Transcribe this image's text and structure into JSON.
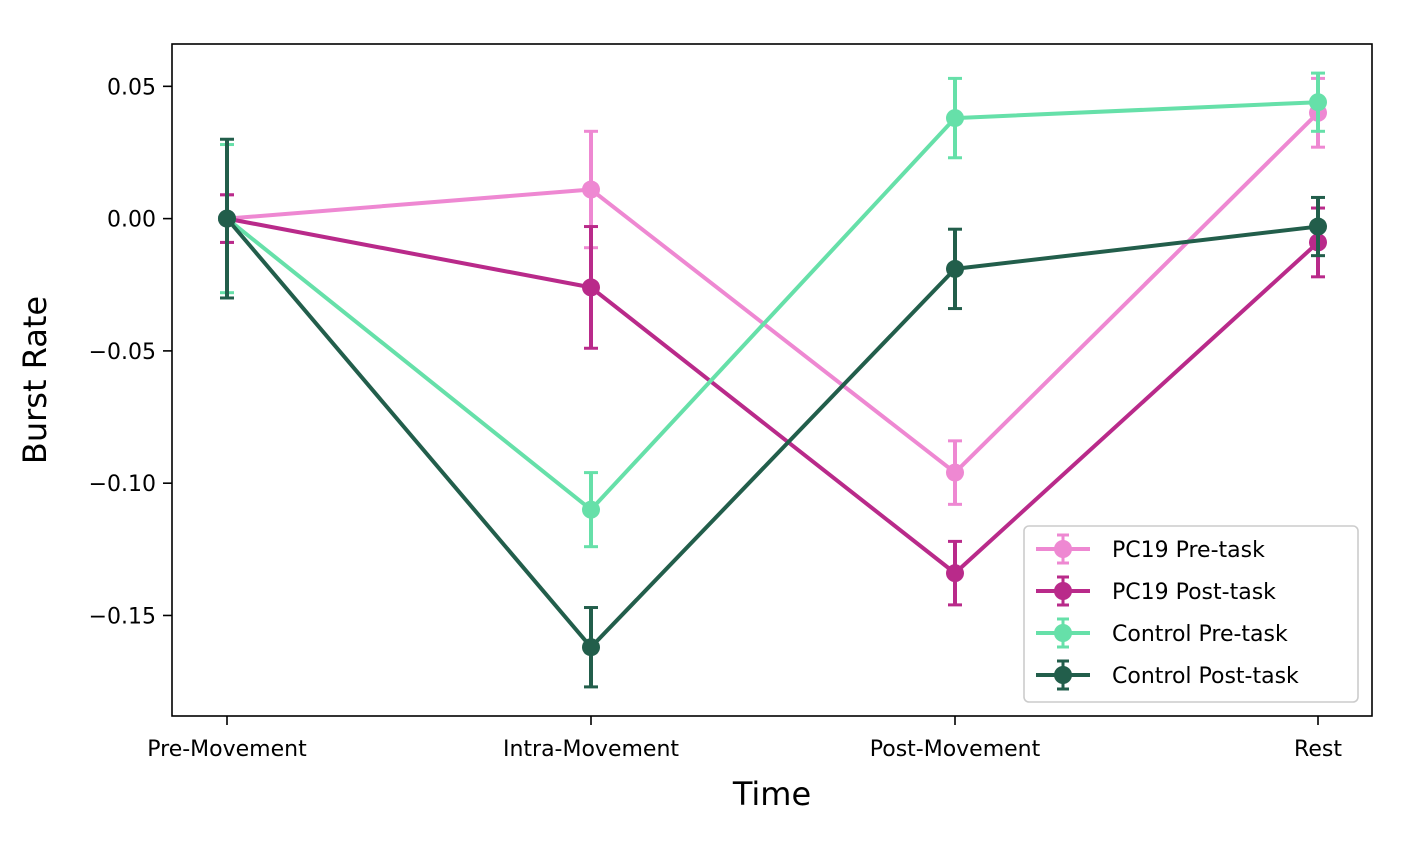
{
  "chart_data": {
    "type": "line",
    "title": "",
    "xlabel": "Time",
    "ylabel": "Burst Rate",
    "categories": [
      "Pre-Movement",
      "Intra-Movement",
      "Post-Movement",
      "Rest"
    ],
    "ylim": [
      -0.188,
      0.066
    ],
    "yticks": [
      -0.15,
      -0.1,
      -0.05,
      0.0,
      0.05
    ],
    "ytick_labels": [
      "−0.15",
      "−0.10",
      "−0.05",
      "0.00",
      "0.05"
    ],
    "grid": false,
    "legend_position": "lower-right",
    "series": [
      {
        "name": "PC19 Pre-task",
        "color": "#ee88d2",
        "values": [
          0.0,
          0.011,
          -0.096,
          0.04
        ],
        "errors": [
          0.009,
          0.022,
          0.012,
          0.013
        ]
      },
      {
        "name": "PC19 Post-task",
        "color": "#b92a8a",
        "values": [
          0.0,
          -0.026,
          -0.134,
          -0.009
        ],
        "errors": [
          0.009,
          0.023,
          0.012,
          0.013
        ]
      },
      {
        "name": "Control Pre-task",
        "color": "#66e0a9",
        "values": [
          0.0,
          -0.11,
          0.038,
          0.044
        ],
        "errors": [
          0.028,
          0.014,
          0.015,
          0.011
        ]
      },
      {
        "name": "Control Post-task",
        "color": "#225e4b",
        "values": [
          0.0,
          -0.162,
          -0.019,
          -0.003
        ],
        "errors": [
          0.03,
          0.015,
          0.015,
          0.011
        ]
      }
    ]
  }
}
